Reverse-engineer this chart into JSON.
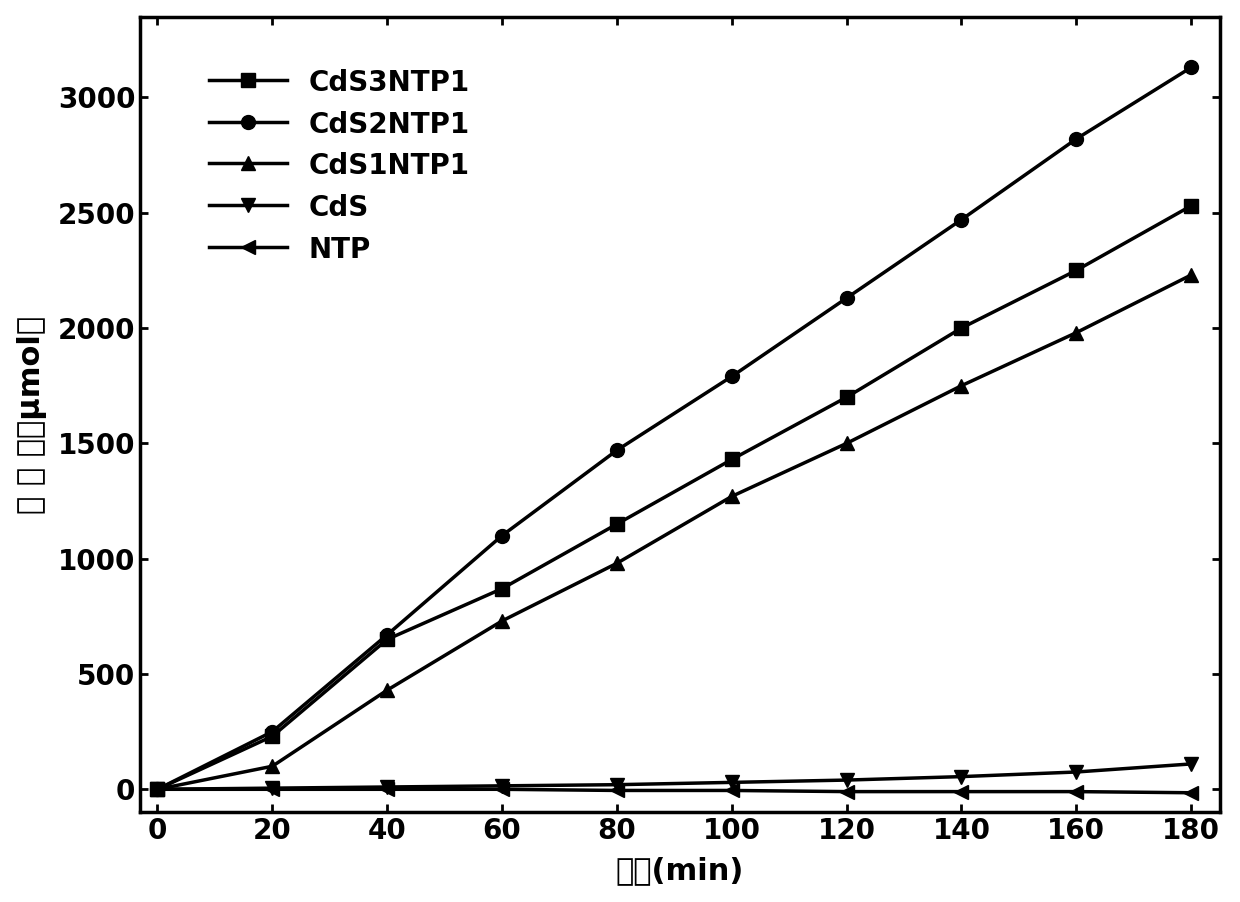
{
  "x": [
    0,
    20,
    40,
    60,
    80,
    100,
    120,
    140,
    160,
    180
  ],
  "CdS3NTP1": [
    0,
    230,
    650,
    870,
    1150,
    1430,
    1700,
    2000,
    2250,
    2530
  ],
  "CdS2NTP1": [
    0,
    250,
    670,
    1100,
    1470,
    1790,
    2130,
    2470,
    2820,
    3130
  ],
  "CdS1NTP1": [
    0,
    100,
    430,
    730,
    980,
    1270,
    1500,
    1750,
    1980,
    2230
  ],
  "CdS": [
    0,
    5,
    10,
    15,
    20,
    30,
    40,
    55,
    75,
    110
  ],
  "NTP": [
    0,
    0,
    0,
    0,
    -5,
    -5,
    -10,
    -10,
    -10,
    -15
  ],
  "ylabel": "产 氯 量（μmol）",
  "xlabel": "时间(min)",
  "ylim": [
    -100,
    3350
  ],
  "xlim": [
    -3,
    185
  ],
  "yticks": [
    0,
    500,
    1000,
    1500,
    2000,
    2500,
    3000
  ],
  "xticks": [
    0,
    20,
    40,
    60,
    80,
    100,
    120,
    140,
    160,
    180
  ],
  "line_color": "#000000",
  "background_color": "#ffffff",
  "legend_labels": [
    "CdS3NTP1",
    "CdS2NTP1",
    "CdS1NTP1",
    "CdS",
    "NTP"
  ],
  "markers": [
    "s",
    "o",
    "^",
    "v",
    "<"
  ],
  "linewidth": 2.5,
  "markersize": 10,
  "fontsize_label": 22,
  "fontsize_tick": 20,
  "fontsize_legend": 20
}
